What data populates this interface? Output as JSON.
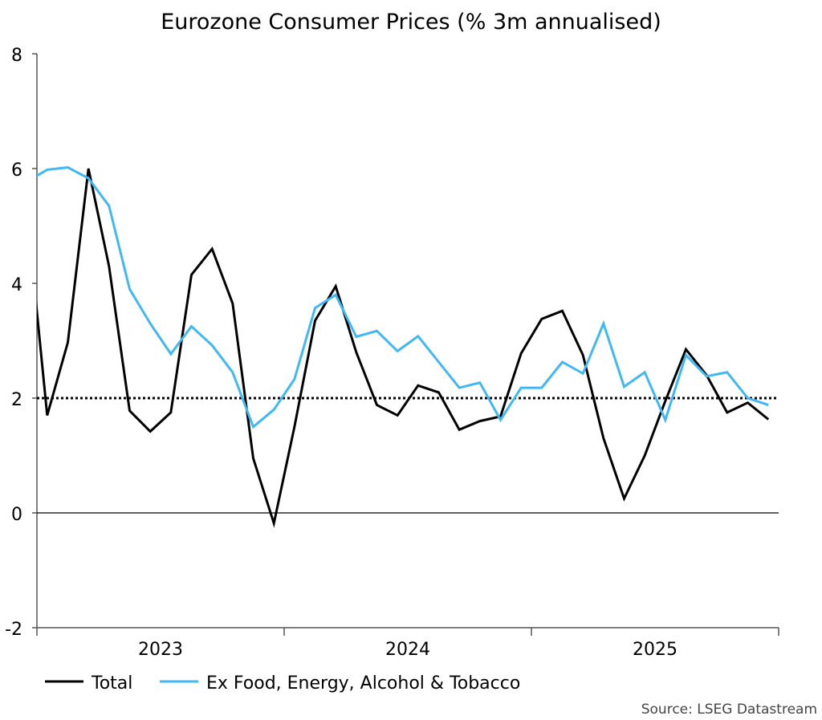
{
  "chart_data": {
    "type": "line",
    "title": "Eurozone Consumer Prices (% 3m annualised)",
    "source": "Source: LSEG Datastream",
    "ylim": [
      -2,
      8
    ],
    "yticks": [
      -2,
      0,
      2,
      4,
      6,
      8
    ],
    "xlim": [
      "2023-01",
      "2025-12"
    ],
    "xtick_labels": [
      "2023",
      "2024",
      "2025"
    ],
    "reference_line": {
      "y": 2,
      "style": "dotted"
    },
    "zero_line": true,
    "grid": false,
    "legend_position": "bottom-left",
    "x": [
      "2022-12",
      "2023-01",
      "2023-02",
      "2023-03",
      "2023-04",
      "2023-05",
      "2023-06",
      "2023-07",
      "2023-08",
      "2023-09",
      "2023-10",
      "2023-11",
      "2023-12",
      "2024-01",
      "2024-02",
      "2024-03",
      "2024-04",
      "2024-05",
      "2024-06",
      "2024-07",
      "2024-08",
      "2024-09",
      "2024-10",
      "2024-11",
      "2024-12",
      "2025-01",
      "2025-02",
      "2025-03",
      "2025-04",
      "2025-05",
      "2025-06",
      "2025-07",
      "2025-08",
      "2025-09",
      "2025-10",
      "2025-11",
      "2025-12"
    ],
    "series": [
      {
        "name": "Total",
        "color": "#000000",
        "values": [
          5.3,
          1.7,
          2.97,
          6.0,
          4.3,
          1.78,
          1.42,
          1.75,
          4.15,
          4.6,
          3.65,
          0.95,
          -0.18,
          1.5,
          3.35,
          3.95,
          2.8,
          1.88,
          1.7,
          2.22,
          2.1,
          1.45,
          1.6,
          1.68,
          2.78,
          3.38,
          3.52,
          2.75,
          1.3,
          0.25,
          1.0,
          1.95,
          2.85,
          2.4,
          1.75,
          1.92,
          1.63
        ]
      },
      {
        "name": "Ex Food, Energy, Alcohol & Tobacco",
        "color": "#3fb8f5",
        "values": [
          5.77,
          5.98,
          6.02,
          5.83,
          5.35,
          3.9,
          3.3,
          2.77,
          3.25,
          2.92,
          2.45,
          1.5,
          1.8,
          2.33,
          3.57,
          3.8,
          3.07,
          3.17,
          2.82,
          3.08,
          2.63,
          2.18,
          2.27,
          1.62,
          2.18,
          2.18,
          2.63,
          2.43,
          3.3,
          2.2,
          2.45,
          1.62,
          2.75,
          2.38,
          2.45,
          2.0,
          1.88
        ]
      }
    ]
  }
}
